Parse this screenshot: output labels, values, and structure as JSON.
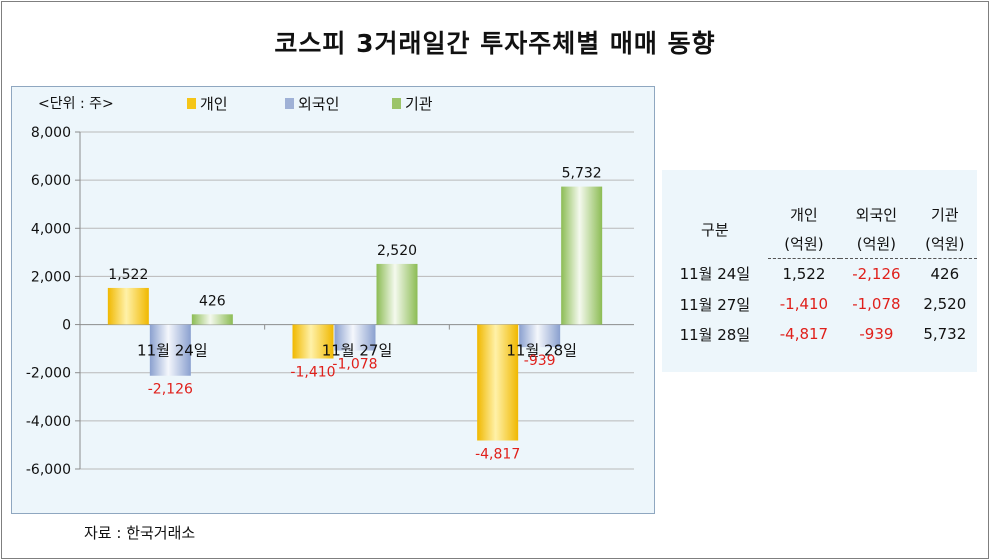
{
  "title": "코스피 3거래일간 투자주체별 매매 동향",
  "source": "자료 : 한국거래소",
  "colors": {
    "individual": "#f5c518",
    "foreign": "#9fb1d6",
    "institution": "#9cc46a",
    "negative": "#e0201b"
  },
  "chart_data": {
    "type": "bar",
    "unit_label": "<단위 : 주>",
    "categories": [
      "11월 24일",
      "11월 27일",
      "11월 28일"
    ],
    "series": [
      {
        "name": "개인",
        "values": [
          1522,
          -1410,
          -4817
        ],
        "labels": [
          "1,522",
          "-1,410",
          "-4,817"
        ]
      },
      {
        "name": "외국인",
        "values": [
          -2126,
          -1078,
          -939
        ],
        "labels": [
          "-2,126",
          "-1,078",
          "-939"
        ]
      },
      {
        "name": "기관",
        "values": [
          426,
          2520,
          5732
        ],
        "labels": [
          "426",
          "2,520",
          "5,732"
        ]
      }
    ],
    "ylim": [
      -6000,
      8000
    ],
    "yticks": [
      8000,
      6000,
      4000,
      2000,
      0,
      -2000,
      -4000,
      -6000
    ],
    "ytick_labels": [
      "8,000",
      "6,000",
      "4,000",
      "2,000",
      "0",
      "-2,000",
      "-4,000",
      "-6,000"
    ],
    "grid": true,
    "legend": "top"
  },
  "table": {
    "headers": [
      {
        "line1": "",
        "line2": ""
      },
      {
        "line1": "개인",
        "line2": "(억원)"
      },
      {
        "line1": "외국인",
        "line2": "(억원)"
      },
      {
        "line1": "기관",
        "line2": "(억원)"
      }
    ],
    "first_header": "구분",
    "rows": [
      {
        "date": "11월 24일",
        "individual": "1,522",
        "foreign": "-2,126",
        "institution": "426"
      },
      {
        "date": "11월 27일",
        "individual": "-1,410",
        "foreign": "-1,078",
        "institution": "2,520"
      },
      {
        "date": "11월 28일",
        "individual": "-4,817",
        "foreign": "-939",
        "institution": "5,732"
      }
    ]
  }
}
